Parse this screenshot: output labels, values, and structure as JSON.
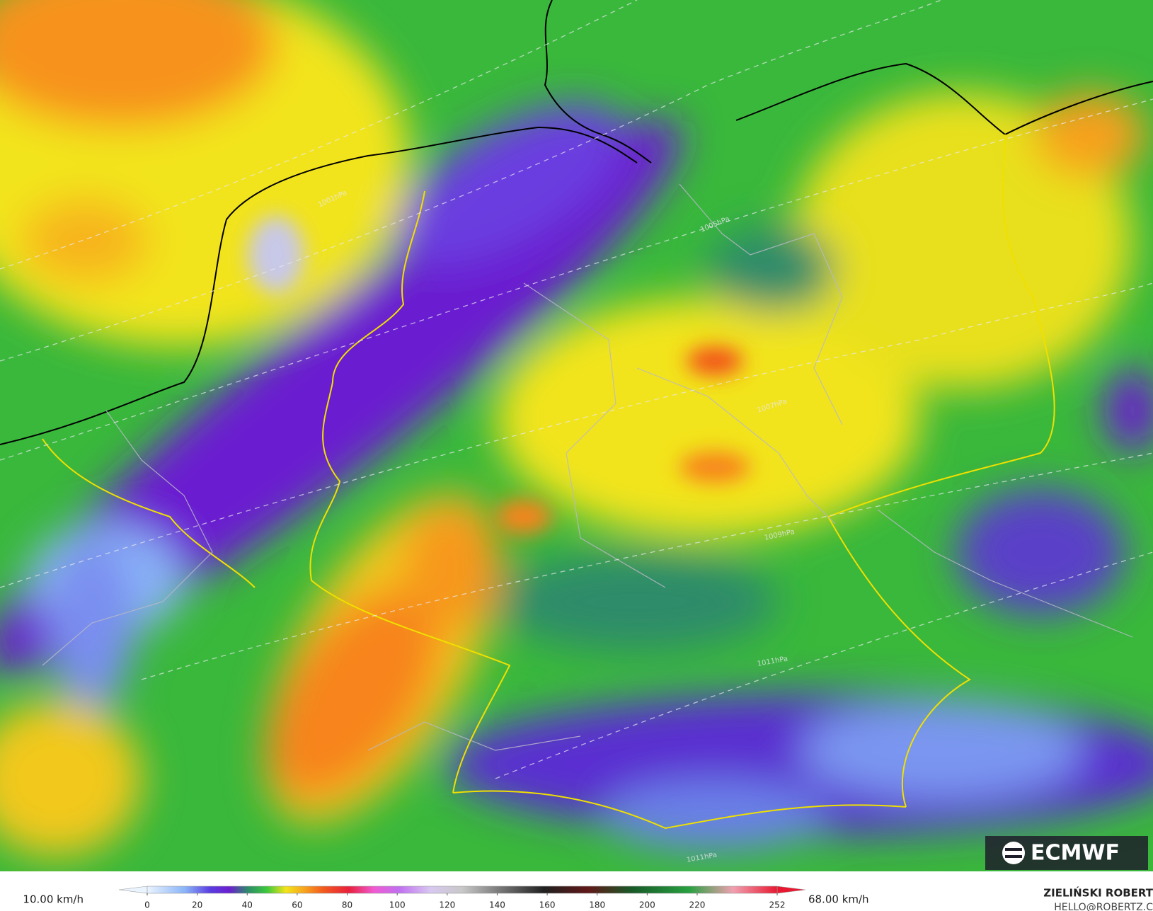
{
  "legend": {
    "min_label": "10.00 km/h",
    "max_label": "68.00 km/h",
    "ticks": [
      0,
      20,
      40,
      60,
      80,
      100,
      120,
      140,
      160,
      180,
      200,
      220,
      252
    ]
  },
  "logo": "ECMWF",
  "credit": {
    "name": "ZIELIŃSKI ROBERT",
    "email": "HELLO@ROBERTZ.CO"
  },
  "isobars": [
    "1001hPa",
    "1005hPa",
    "1007hPa",
    "1009hPa",
    "1011hPa",
    "1011hPa"
  ]
}
